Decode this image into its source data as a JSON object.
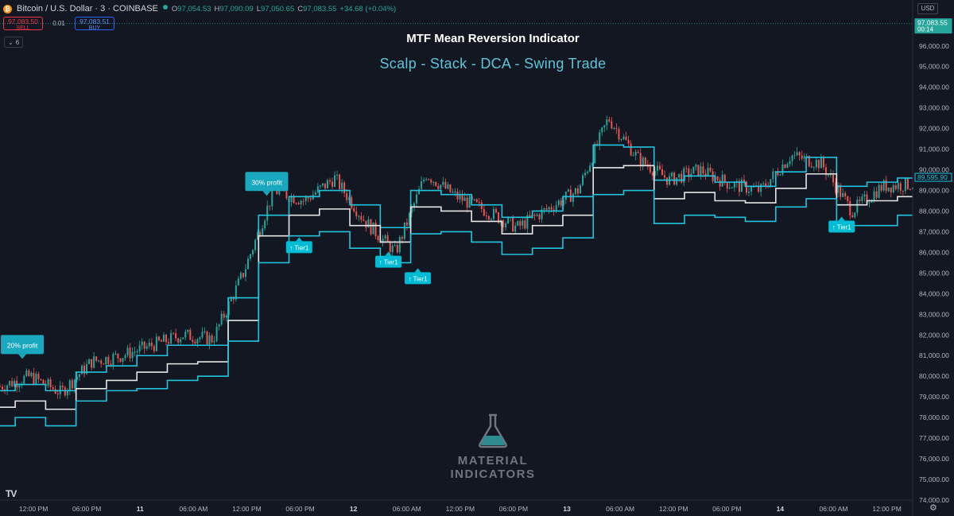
{
  "header": {
    "symbol": "Bitcoin / U.S. Dollar · 3 · COINBASE",
    "ohlc": {
      "o_label": "O",
      "o": "97,054.53",
      "h_label": "H",
      "h": "97,090.09",
      "l_label": "L",
      "l": "97,050.65",
      "c_label": "C",
      "c": "97,083.55",
      "change": "+34.68 (+0.04%)"
    },
    "sell_price": "97,083.50",
    "sell_label": "SELL",
    "buy_price": "97,083.51",
    "buy_label": "BUY",
    "spread": "0.01",
    "indicator_count": "6"
  },
  "currency": "USD",
  "colors": {
    "background": "#131722",
    "band": "#22c3dd",
    "mid": "#e6e6e6",
    "up": "#26a69a",
    "down": "#ef5350",
    "label_fill": "#1aa8bf"
  },
  "icons": {
    "symbol": "bitcoin-icon",
    "collapse": "chevron-down-icon",
    "settings": "gear-icon",
    "brand": "tradingview-logo",
    "watermark": "flask-icon"
  },
  "watermark": "MATERIAL INDICATORS",
  "chart_data": {
    "type": "line",
    "title": "MTF Mean Reversion Indicator",
    "subtitle": "Scalp - Stack - DCA - Swing Trade",
    "xlabel": "",
    "ylabel": "",
    "ylim": [
      74000,
      97300
    ],
    "y_ticks": [
      "97,000.00",
      "96,000.00",
      "95,000.00",
      "94,000.00",
      "93,000.00",
      "92,000.00",
      "91,000.00",
      "90,000.00",
      "89,000.00",
      "88,000.00",
      "87,000.00",
      "86,000.00",
      "85,000.00",
      "84,000.00",
      "83,000.00",
      "82,000.00",
      "81,000.00",
      "80,000.00",
      "79,000.00",
      "78,000.00",
      "77,000.00",
      "76,000.00",
      "75,000.00",
      "74,000.00"
    ],
    "x_ticks": [
      "12:00 PM",
      "06:00 PM",
      "11",
      "06:00 AM",
      "12:00 PM",
      "06:00 PM",
      "12",
      "06:00 AM",
      "12:00 PM",
      "06:00 PM",
      "13",
      "06:00 AM",
      "12:00 PM",
      "06:00 PM",
      "14",
      "06:00 AM",
      "12:00 PM"
    ],
    "price_series": {
      "t": [
        0,
        3,
        6,
        9,
        12,
        15,
        18,
        21,
        24,
        27,
        30,
        33,
        36,
        39,
        42,
        45,
        48,
        51,
        54,
        57,
        60,
        63,
        66,
        69,
        72,
        75,
        78,
        81,
        84,
        87,
        90
      ],
      "close": [
        79500,
        80000,
        79200,
        80700,
        81000,
        81500,
        82000,
        81800,
        85000,
        89000,
        88500,
        89600,
        87500,
        86000,
        89800,
        88700,
        88000,
        87200,
        88100,
        89000,
        92500,
        90500,
        89500,
        90000,
        89300,
        89000,
        90700,
        90300,
        88000,
        89200,
        89300
      ]
    },
    "series": [
      {
        "name": "upper band",
        "x": [
          0,
          3,
          6,
          9,
          12,
          15,
          18,
          21,
          24,
          27,
          30,
          33,
          36,
          39,
          42,
          45,
          48,
          51,
          54,
          57,
          60,
          63,
          66,
          69,
          72,
          75,
          78,
          81,
          84,
          87,
          90
        ],
        "values": [
          79300,
          79600,
          79300,
          80200,
          80500,
          81000,
          81500,
          81500,
          83800,
          87800,
          88700,
          89000,
          88300,
          87200,
          89000,
          88800,
          88300,
          87700,
          88000,
          88700,
          91200,
          91100,
          89500,
          89700,
          89400,
          89200,
          89900,
          90600,
          89200,
          89400,
          89600
        ]
      },
      {
        "name": "mid line",
        "x": [
          0,
          3,
          6,
          9,
          12,
          15,
          18,
          21,
          24,
          27,
          30,
          33,
          36,
          39,
          42,
          45,
          48,
          51,
          54,
          57,
          60,
          63,
          66,
          69,
          72,
          75,
          78,
          81,
          84,
          87,
          90
        ],
        "values": [
          78500,
          78800,
          78400,
          79400,
          79800,
          80200,
          80600,
          80700,
          82700,
          86800,
          87800,
          88100,
          87300,
          86500,
          88200,
          88000,
          87500,
          86900,
          87300,
          87800,
          90100,
          90200,
          88600,
          88900,
          88500,
          88400,
          89100,
          89800,
          88300,
          88500,
          88700
        ]
      },
      {
        "name": "lower band",
        "x": [
          0,
          3,
          6,
          9,
          12,
          15,
          18,
          21,
          24,
          27,
          30,
          33,
          36,
          39,
          42,
          45,
          48,
          51,
          54,
          57,
          60,
          63,
          66,
          69,
          72,
          75,
          78,
          81,
          84,
          87,
          90
        ],
        "values": [
          77600,
          78000,
          77600,
          78800,
          79300,
          79400,
          79800,
          80000,
          81700,
          85500,
          86800,
          87000,
          86200,
          85500,
          86900,
          87000,
          86500,
          85900,
          86200,
          86700,
          88800,
          89000,
          87400,
          87800,
          87700,
          87500,
          88200,
          88600,
          87300,
          87300,
          87800
        ]
      }
    ],
    "annotations": [
      {
        "label": "20% profit",
        "t": 2.2,
        "y": 80800,
        "kind": "profit"
      },
      {
        "label": "30% profit",
        "t": 26.3,
        "y": 88700,
        "kind": "profit"
      },
      {
        "label": "↑ Tier1",
        "t": 29.5,
        "y": 86500,
        "kind": "tier"
      },
      {
        "label": "↑ Tier1",
        "t": 38.3,
        "y": 85800,
        "kind": "tier"
      },
      {
        "label": "↑ Tier1",
        "t": 41.2,
        "y": 85000,
        "kind": "tier"
      },
      {
        "label": "↑ Tier1",
        "t": 83.0,
        "y": 87500,
        "kind": "tier"
      }
    ],
    "price_tags": [
      {
        "price": "97,083.55",
        "sub": "00:14",
        "y": 97083,
        "color": "#26a69a"
      },
      {
        "price": "89,595.90",
        "y": 89596,
        "color": "#22c3dd"
      }
    ],
    "grid": false,
    "legend": "none"
  }
}
